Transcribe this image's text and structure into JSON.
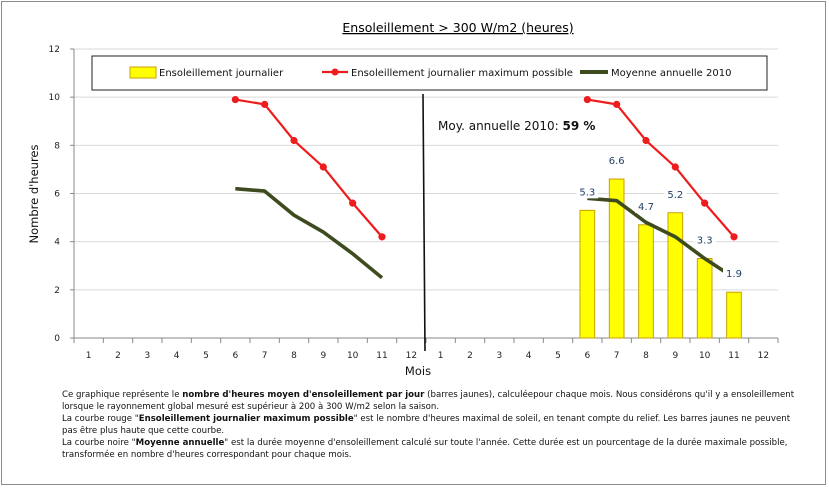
{
  "chart_data": {
    "type": "bar+line",
    "title": "Ensoleillement > 300 W/m2 (heures)",
    "xlabel": "Mois",
    "ylabel": "Nombre d'heures",
    "ylim": [
      0,
      12
    ],
    "yticks": [
      "0",
      "2",
      "4",
      "6",
      "8",
      "10",
      "12"
    ],
    "xticks_left": [
      "1",
      "2",
      "3",
      "4",
      "5",
      "6",
      "7",
      "8",
      "9",
      "10",
      "11",
      "12"
    ],
    "xticks_right": [
      "1",
      "2",
      "3",
      "4",
      "5",
      "6",
      "7",
      "8",
      "9",
      "10",
      "11",
      "12"
    ],
    "legend_position": "top",
    "annotation": {
      "text": "Moy. annuelle 2010: ",
      "value": "59 %"
    },
    "left_panel": {
      "series": [
        {
          "name": "Ensoleillement journalier maximum possible",
          "color": "#ee1c1c",
          "x": [
            6,
            7,
            8,
            9,
            10,
            11
          ],
          "values": [
            9.9,
            9.7,
            8.2,
            7.1,
            5.6,
            4.2
          ]
        },
        {
          "name": "Moyenne annuelle 2010",
          "color": "#3d4b1e",
          "x": [
            6,
            7,
            8,
            9,
            10,
            11
          ],
          "values": [
            6.2,
            6.1,
            5.1,
            4.4,
            3.5,
            2.5
          ]
        }
      ]
    },
    "right_panel": {
      "series": [
        {
          "name": "Ensoleillement journalier",
          "type": "bar",
          "color": "#ffff00",
          "border": "#c8a000",
          "x": [
            6,
            7,
            8,
            9,
            10,
            11
          ],
          "values": [
            5.3,
            6.6,
            4.7,
            5.2,
            3.3,
            1.9
          ],
          "labels": [
            "5.3",
            "6.6",
            "4.7",
            "5.2",
            "3.3",
            "1.9"
          ]
        },
        {
          "name": "Ensoleillement journalier maximum possible",
          "color": "#ee1c1c",
          "x": [
            6,
            7,
            8,
            9,
            10,
            11
          ],
          "values": [
            9.9,
            9.7,
            8.2,
            7.1,
            5.6,
            4.2
          ]
        },
        {
          "name": "Moyenne annuelle 2010",
          "color": "#3d4b1e",
          "x": [
            6,
            7,
            8,
            9,
            10,
            11
          ],
          "values": [
            5.8,
            5.7,
            4.8,
            4.2,
            3.3,
            2.5
          ]
        }
      ]
    },
    "legend": [
      {
        "label": "Ensoleillement journalier",
        "kind": "bar",
        "color": "#ffff00"
      },
      {
        "label": "Ensoleillement journalier maximum possible",
        "kind": "line-marker",
        "color": "#ee1c1c"
      },
      {
        "label": "Moyenne annuelle 2010",
        "kind": "line",
        "color": "#3d4b1e"
      }
    ]
  },
  "caption": {
    "p1_a": "Ce graphique représente le ",
    "p1_b": "nombre d'heures moyen d'ensoleillement par jour",
    "p1_c": " (barres jaunes), calculéepour chaque mois. Nous considérons qu'il y a ensoleillement lorsque le rayonnement global mesuré est supérieur à 200 à 300 W/m2 selon la saison.",
    "p2_a": "La courbe rouge \"",
    "p2_b": "Ensoleillement journalier  maximum possible",
    "p2_c": "\" est le nombre d'heures maximal de soleil, en tenant compte du relief. Les barres jaunes ne peuvent pas être plus haute que cette courbe.",
    "p3_a": "La courbe noire \"",
    "p3_b": "Moyenne annuelle",
    "p3_c": "\"  est la durée moyenne d'ensoleillement calculé sur toute l'année. Cette durée est un pourcentage de la durée maximale possible, transformée en nombre d'heures correspondant pour chaque mois."
  }
}
